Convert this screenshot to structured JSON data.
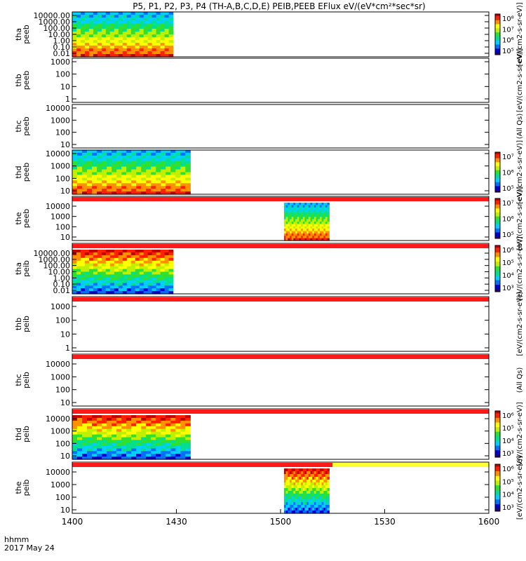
{
  "chart_data": {
    "type": "heatmap",
    "title": "P5, P1, P2, P3, P4 (TH-A,B,C,D,E) PEIB,PEEB EFlux eV/(eV*cm²*sec*sr)",
    "date_label": "2017 May 24",
    "time_label": "hhmm",
    "x_ticks": [
      "1400",
      "1430",
      "1500",
      "1530",
      "1600"
    ],
    "x_range_minutes": [
      0,
      120
    ],
    "colormap": [
      "#2a0060",
      "#0000d0",
      "#0070ff",
      "#00d0ff",
      "#00e090",
      "#30e030",
      "#c0f000",
      "#ffff00",
      "#ff9000",
      "#ff2000",
      "#c00000"
    ],
    "bar_colors": {
      "red": "#ff1a1a",
      "yellow": "#ffff33"
    },
    "panels": [
      {
        "probe": "tha",
        "product": "peeb",
        "log_scale": true,
        "y_ticks": [
          "10000.00",
          "1000.00",
          "100.00",
          "10.00",
          "1.00",
          "0.10",
          "0.01"
        ],
        "colorbar_ticks": [
          "10⁸",
          "10⁷",
          "10⁶",
          "10⁵"
        ],
        "colorbar_label": "[eV/(cm2-s-sr-eV)]",
        "data_time_range": [
          0,
          29
        ],
        "bar": null
      },
      {
        "probe": "thb",
        "product": "peeb",
        "log_scale": true,
        "y_ticks": [
          "1000",
          "100",
          "10",
          "1"
        ],
        "colorbar_ticks": [],
        "colorbar_label": "[eV/(cm2-s-sr-eV)]",
        "data_time_range": null,
        "bar": null
      },
      {
        "probe": "thc",
        "product": "peeb",
        "log_scale": true,
        "y_ticks": [
          "10000",
          "1000",
          "100",
          "10"
        ],
        "colorbar_ticks": [],
        "colorbar_label": "(All Qs)",
        "data_time_range": null,
        "bar": null
      },
      {
        "probe": "thd",
        "product": "peeb",
        "log_scale": true,
        "y_ticks": [
          "10000",
          "1000",
          "100",
          "10"
        ],
        "colorbar_ticks": [
          "10⁷",
          "10⁶",
          "10⁵"
        ],
        "colorbar_label": "[eV/(cm2-s-sr-eV)]",
        "data_time_range": [
          0,
          34
        ],
        "bar": null
      },
      {
        "probe": "the",
        "product": "peeb",
        "log_scale": true,
        "y_ticks": [
          "10000",
          "1000",
          "100",
          "10"
        ],
        "colorbar_ticks": [
          "10⁷",
          "10⁶",
          "10⁵"
        ],
        "colorbar_label": "[eV/(cm2-s-sr-eV)]",
        "data_time_range": [
          61,
          74
        ],
        "bar": "red"
      },
      {
        "probe": "tha",
        "product": "peib",
        "log_scale": true,
        "y_ticks": [
          "10000.00",
          "1000.00",
          "100.00",
          "10.00",
          "1.00",
          "0.10",
          "0.01"
        ],
        "colorbar_ticks": [
          "10⁶",
          "10⁵",
          "10⁴",
          "10³"
        ],
        "colorbar_label": "[eV/(cm2-s-sr-eV)]",
        "data_time_range": [
          0,
          29
        ],
        "bar": "red"
      },
      {
        "probe": "thb",
        "product": "peib",
        "log_scale": true,
        "y_ticks": [
          "1000",
          "100",
          "10",
          "1"
        ],
        "colorbar_ticks": [],
        "colorbar_label": "[eV/(cm2-s-sr-eV)]",
        "data_time_range": null,
        "bar": "red"
      },
      {
        "probe": "thc",
        "product": "peib",
        "log_scale": true,
        "y_ticks": [
          "10000",
          "1000",
          "100",
          "10"
        ],
        "colorbar_ticks": [],
        "colorbar_label": "(All Qs)",
        "data_time_range": null,
        "bar": "red"
      },
      {
        "probe": "thd",
        "product": "peib",
        "log_scale": true,
        "y_ticks": [
          "10000",
          "1000",
          "100",
          "10"
        ],
        "colorbar_ticks": [
          "10⁶",
          "10⁵",
          "10⁴",
          "10³"
        ],
        "colorbar_label": "[eV/(cm2-s-sr-eV)]",
        "data_time_range": [
          0,
          34
        ],
        "bar": "red"
      },
      {
        "probe": "the",
        "product": "peib",
        "log_scale": true,
        "y_ticks": [
          "10000",
          "1000",
          "100",
          "10"
        ],
        "colorbar_ticks": [
          "10⁶",
          "10⁵",
          "10⁴",
          "10³"
        ],
        "colorbar_label": "[eV/(cm2-s-sr-eV)]",
        "data_time_range": [
          61,
          74
        ],
        "bar": "red_then_yellow"
      }
    ]
  }
}
